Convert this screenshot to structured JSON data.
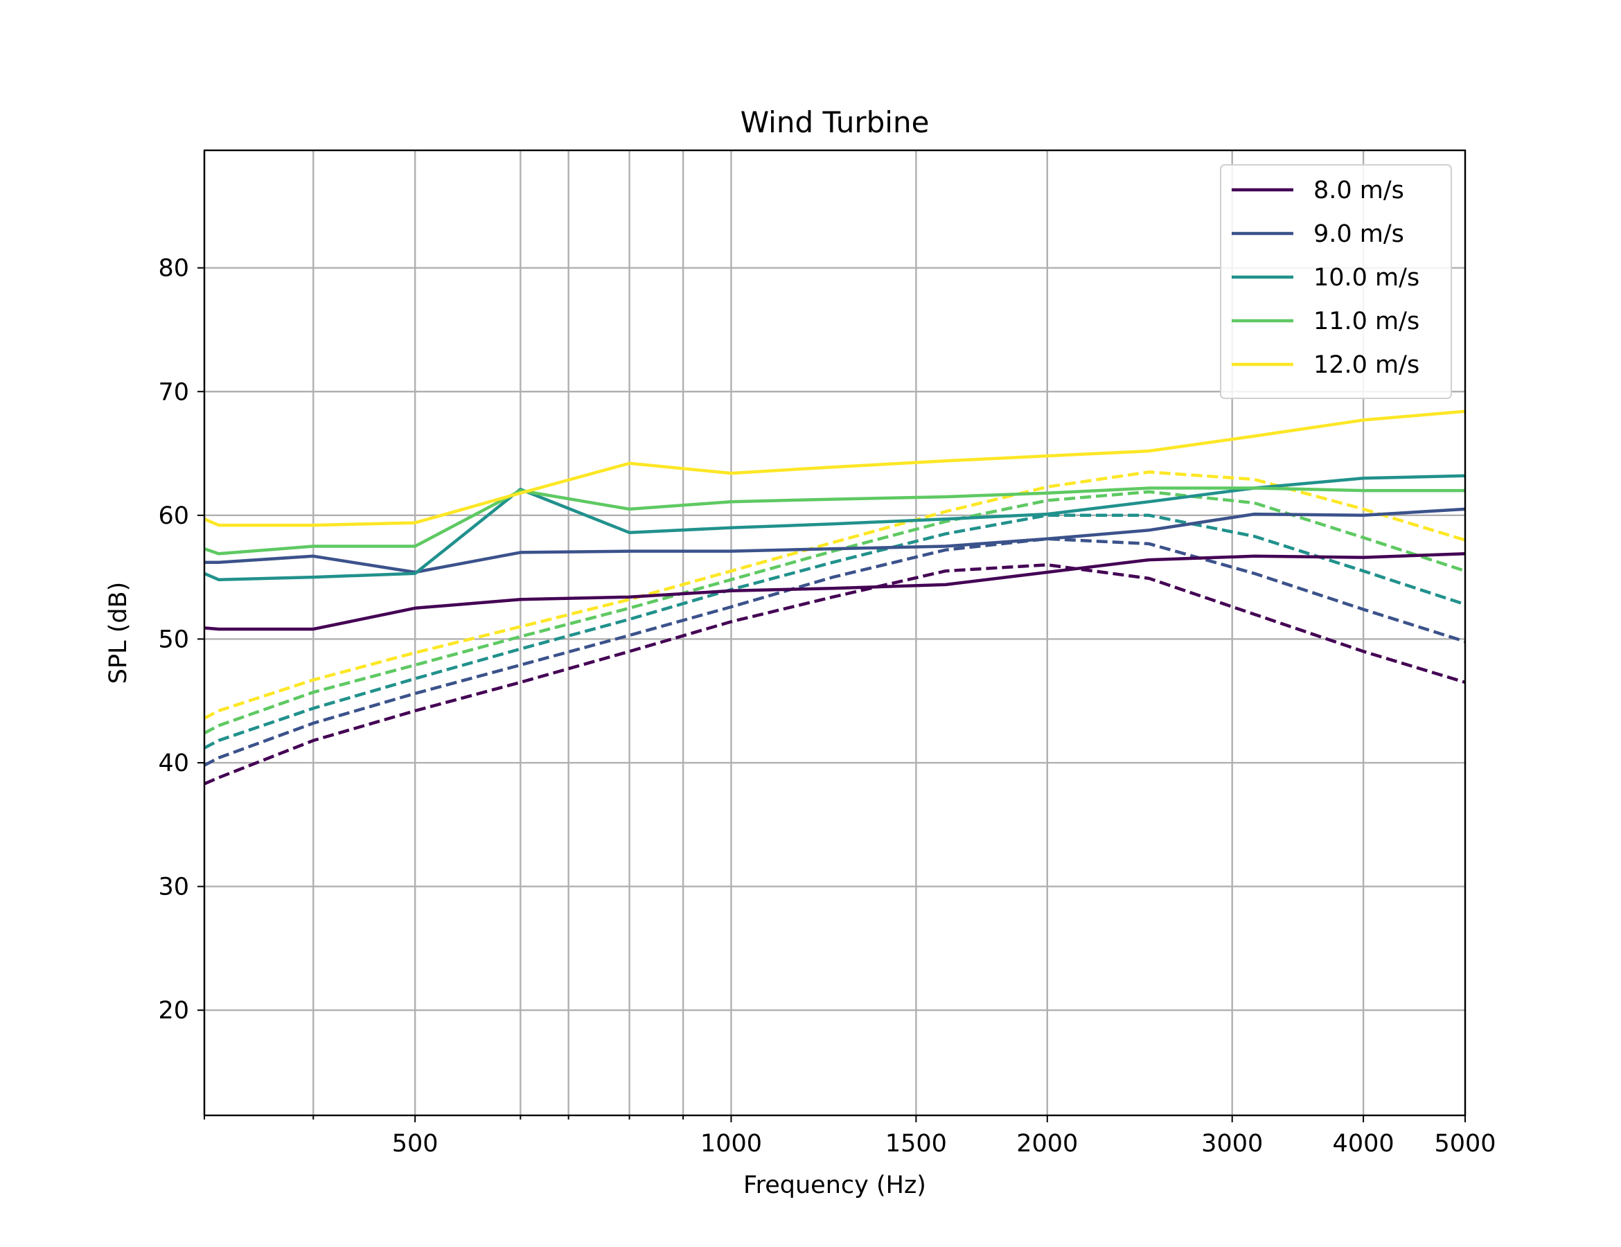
{
  "chart_data": {
    "type": "line",
    "title": "Wind Turbine",
    "xlabel": "Frequency (Hz)",
    "ylabel": "SPL (dB)",
    "xscale": "log",
    "xlim": [
      315,
      5000
    ],
    "ylim": [
      11.5,
      89.5
    ],
    "grid": true,
    "legend_position": "top-right",
    "x_ticks_major": [
      500,
      1000,
      1500,
      2000,
      3000,
      4000,
      5000
    ],
    "x_ticks_major_labels": [
      "500",
      "1000",
      "1500",
      "2000",
      "3000",
      "4000",
      "5000"
    ],
    "x_ticks_minor": [
      315,
      400,
      630,
      700,
      800,
      900
    ],
    "y_ticks": [
      20,
      30,
      40,
      50,
      60,
      70,
      80
    ],
    "y_tick_labels": [
      "20",
      "30",
      "40",
      "50",
      "60",
      "70",
      "80"
    ],
    "frequencies": [
      315,
      325,
      400,
      500,
      630,
      800,
      1000,
      1250,
      1600,
      2000,
      2500,
      3150,
      4000,
      5000
    ],
    "series": [
      {
        "name": "8.0 m/s",
        "color": "#440154",
        "solid": [
          50.9,
          50.8,
          50.8,
          52.5,
          53.2,
          53.4,
          53.9,
          54.1,
          54.4,
          55.4,
          56.4,
          56.7,
          56.6,
          56.9
        ],
        "dashed": [
          38.3,
          38.8,
          41.8,
          44.2,
          46.5,
          49.0,
          51.4,
          53.4,
          55.5,
          56.0,
          54.9,
          52.0,
          49.0,
          46.5
        ]
      },
      {
        "name": "9.0 m/s",
        "color": "#3b528b",
        "solid": [
          56.2,
          56.2,
          56.7,
          55.4,
          57.0,
          57.1,
          57.1,
          57.3,
          57.5,
          58.1,
          58.8,
          60.1,
          60.0,
          60.5
        ],
        "dashed": [
          39.8,
          40.4,
          43.2,
          45.6,
          47.9,
          50.3,
          52.6,
          55.0,
          57.2,
          58.1,
          57.7,
          55.3,
          52.4,
          49.8
        ]
      },
      {
        "name": "10.0 m/s",
        "color": "#21918c",
        "solid": [
          55.3,
          54.8,
          55.0,
          55.3,
          62.1,
          58.6,
          59.0,
          59.3,
          59.7,
          60.1,
          61.1,
          62.2,
          63.0,
          63.2
        ],
        "dashed": [
          41.2,
          41.8,
          44.4,
          46.8,
          49.2,
          51.6,
          54.0,
          56.2,
          58.5,
          60.0,
          60.0,
          58.3,
          55.5,
          52.8
        ]
      },
      {
        "name": "11.0 m/s",
        "color": "#5ec962",
        "solid": [
          57.3,
          56.9,
          57.5,
          57.5,
          62.0,
          60.5,
          61.1,
          61.3,
          61.5,
          61.8,
          62.2,
          62.2,
          62.0,
          62.0
        ],
        "dashed": [
          42.4,
          43.0,
          45.7,
          47.9,
          50.2,
          52.5,
          54.8,
          57.1,
          59.5,
          61.2,
          61.9,
          61.0,
          58.2,
          55.5
        ]
      },
      {
        "name": "12.0 m/s",
        "color": "#fde725",
        "solid": [
          59.7,
          59.2,
          59.2,
          59.4,
          61.8,
          64.2,
          63.4,
          63.9,
          64.4,
          64.8,
          65.2,
          66.4,
          67.7,
          68.4
        ],
        "dashed": [
          43.6,
          44.2,
          46.7,
          48.9,
          51.0,
          53.2,
          55.5,
          57.8,
          60.3,
          62.3,
          63.5,
          62.9,
          60.5,
          58.0
        ]
      }
    ]
  }
}
